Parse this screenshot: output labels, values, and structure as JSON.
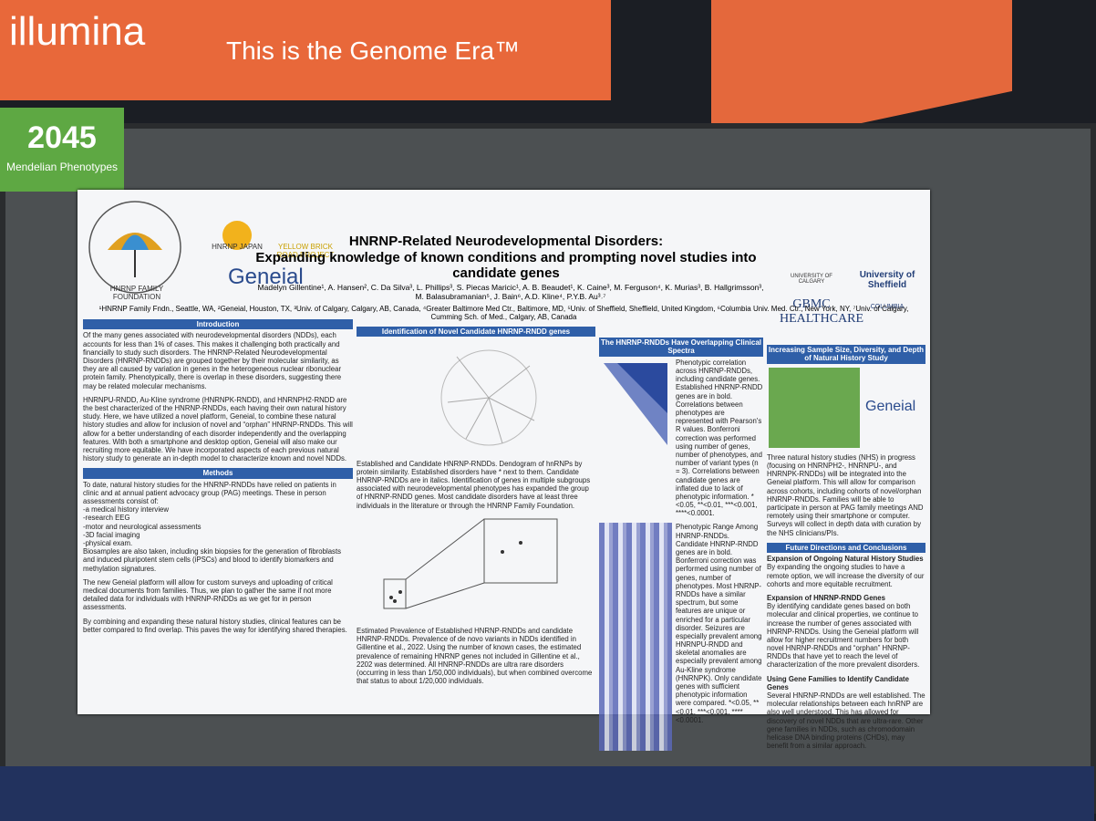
{
  "booth": {
    "brand": "illumina",
    "tagline": "This is the Genome Era™",
    "board_number": "2045",
    "board_label": "Mendelian Phenotypes"
  },
  "poster": {
    "logos": [
      "HNRNP FAMILY FOUNDATION",
      "HNRNP JAPAN",
      "YELLOW BRICK ROAD PROJECT",
      "Geneial",
      "UNIVERSITY OF CALGARY",
      "University of Sheffield",
      "GBMC HEALTHCARE",
      "COLUMBIA"
    ],
    "title": "HNRNP-Related Neurodevelopmental Disorders:",
    "subtitle": "Expanding knowledge of known conditions and prompting novel studies into candidate genes",
    "authors": "Madelyn Gillentine¹, A. Hansen², C. Da Silva³, L. Phillips³, S. Piecas Maricic¹, A. B. Beaudet¹, K. Caine³, M. Ferguson⁴, K. Murias³, B. Hallgrimsson³, M. Balasubramanian⁵, J. Bain⁶, A.D. Kline⁴, P.Y.B. Au³˒⁷",
    "affiliations": "¹HNRNP Family Fndn., Seattle, WA, ²Geneial, Houston, TX, ³Univ. of Calgary, Calgary, AB, Canada, ⁴Greater Baltimore Med Ctr., Baltimore, MD, ⁵Univ. of Sheffield, Sheffield, United Kingdom, ⁶Columbia Univ. Med. Ctr., New York, NY, ⁷Univ. of Calgary, Cumming Sch. of Med., Calgary, AB, Canada",
    "introduction": {
      "heading": "Introduction",
      "paragraphs": [
        "Of the many genes associated with neurodevelopmental disorders (NDDs), each accounts for less than 1% of cases. This makes it challenging both practically and financially to study such disorders. The HNRNP-Related Neurodevelopmental Disorders (HNRNP-RNDDs) are grouped together by their molecular similarity, as they are all caused by variation in genes in the heterogeneous nuclear ribonuclear protein family. Phenotypically, there is overlap in these disorders, suggesting there may be related molecular mechanisms.",
        "HNRNPU-RNDD, Au-Kline syndrome (HNRNPK-RNDD), and HNRNPH2-RNDD are the best characterized of the HNRNP-RNDDs, each having their own natural history study. Here, we have utilized a novel platform, Geneial, to combine these natural history studies and allow for inclusion of novel and “orphan” HNRNP-RNDDs. This will allow for a better understanding of each disorder independently and the overlapping features. With both a smartphone and desktop option, Geneial will also make our recruiting more equitable. We have incorporated aspects of each previous natural history study to generate an in-depth model to characterize known and novel NDDs."
      ]
    },
    "methods": {
      "heading": "Methods",
      "intro": "To date, natural history studies for the HNRNP-RNDDs have relied on patients in clinic and at annual patient advocacy group (PAG) meetings. These in person assessments consist of:",
      "list": [
        "-a medical history interview",
        "-research EEG",
        "-motor and neurological assessments",
        "-3D facial imaging",
        "-physical exam."
      ],
      "paragraphs": [
        "Biosamples are also taken, including skin biopsies for the generation of fibroblasts and induced pluripotent stem cells (iPSCs) and blood to identify biomarkers and methylation signatures.",
        "The new Geneial platform will allow for custom surveys and uploading of critical medical documents from families. Thus, we plan to gather the same if not more detailed data for individuals with HNRNP-RNDDs as we get for in person assessments.",
        "By combining and expanding these natural history studies, clinical features can be better compared to find overlap. This paves the way for identifying shared therapies."
      ]
    },
    "identification": {
      "heading": "Identification of Novel Candidate HNRNP-RNDD genes",
      "caption1": "Established and Candidate HNRNP-RNDDs. Dendogram of hnRNPs by protein similarity. Established disorders have * next to them. Candidate HNRNP-RNDDs are in italics. Identification of genes in multiple subgroups associated with neurodevelopmental phenotypes has expanded the group of HNRNP-RNDD genes. Most candidate disorders have at least three individuals in the literature or through the HNRNP Family Foundation.",
      "caption2": "Estimated Prevalence of Established HNRNP-RNDDs and candidate HNRNP-RNDDs. Prevalence of de novo variants in NDDs identified in Gillentine et al., 2022. Using the number of known cases, the estimated prevalence of remaining HNRNP genes not included in Gillentine et al., 2202 was determined. All HNRNP-RNDDs are ultra rare disorders (occurring in less than 1/50,000 individuals), but when combined overcome that status to about 1/20,000 individuals."
    },
    "spectra": {
      "heading": "The HNRNP-RNDDs Have Overlapping Clinical Spectra",
      "caption1": "Phenotypic correlation across HNRNP-RNDDs, including candidate genes. Established HNRNP-RNDD genes are in bold. Correlations between phenotypes are represented with Pearson's R values. Bonferroni correction was performed using number of genes, number of phenotypes, and number of variant types (n = 3). Correlations between candidate genes are inflated due to lack of phenotypic information. *<0.05, **<0.01, ***<0.001, ****<0.0001.",
      "caption2": "Phenotypic Range Among HNRNP-RNDDs. Candidate HNRNP-RNDD genes are in bold. Bonferroni correction was performed using number of genes, number of phenotypes. Most HNRNP-RNDDs have a similar spectrum, but some features are unique or enriched for a particular disorder. Seizures are especially prevalent among HNRNPU-RNDD and skeletal anomalies are especially prevalent among Au-Kline syndrome (HNRNPK). Only candidate genes with sufficient phenotypic information were compared. *<0.05, **<0.01, ***<0.001, ****<0.0001."
    },
    "increasing": {
      "heading": "Increasing Sample Size, Diversity, and Depth of Natural History Study",
      "text": "Three natural history studies (NHS) in progress (focusing on HNRNPH2-, HNRNPU-, and HNRNPK-RNDDs) will be integrated into the Geneial platform. This will allow for comparison across cohorts, including cohorts of novel/orphan HNRNP-RNDDs. Families will be able to participate in person at PAG family meetings AND remotely using their smartphone or computer. Surveys will collect in depth data with curation by the NHS clinicians/PIs."
    },
    "future": {
      "heading": "Future Directions and Conclusions",
      "items": [
        {
          "title": "Expansion of Ongoing Natural History Studies",
          "text": "By expanding the ongoing studies to have a remote option, we will increase the diversity of our cohorts and more equitable recruitment."
        },
        {
          "title": "Expansion of HNRNP-RNDD Genes",
          "text": "By identifying candidate genes based on both molecular and clinical properties, we continue to increase the number of genes associated with HNRNP-RNDDs. Using the Geneial platform will allow for higher recruitment numbers for both novel HNRNP-RNDDs and “orphan” HNRNP-RNDDs that have yet to reach the level of characterization of the more prevalent disorders."
        },
        {
          "title": "Using Gene Families to Identify Candidate Genes",
          "text": "Several HNRNP-RNDDs are well established. The molecular relationships between each hnRNP are also well understood. This has allowed for discovery of novel NDDs that are ultra-rare. Other gene families in NDDs, such as chromodomain helicase DNA binding proteins (CHDs), may benefit from a similar approach."
        }
      ]
    }
  }
}
